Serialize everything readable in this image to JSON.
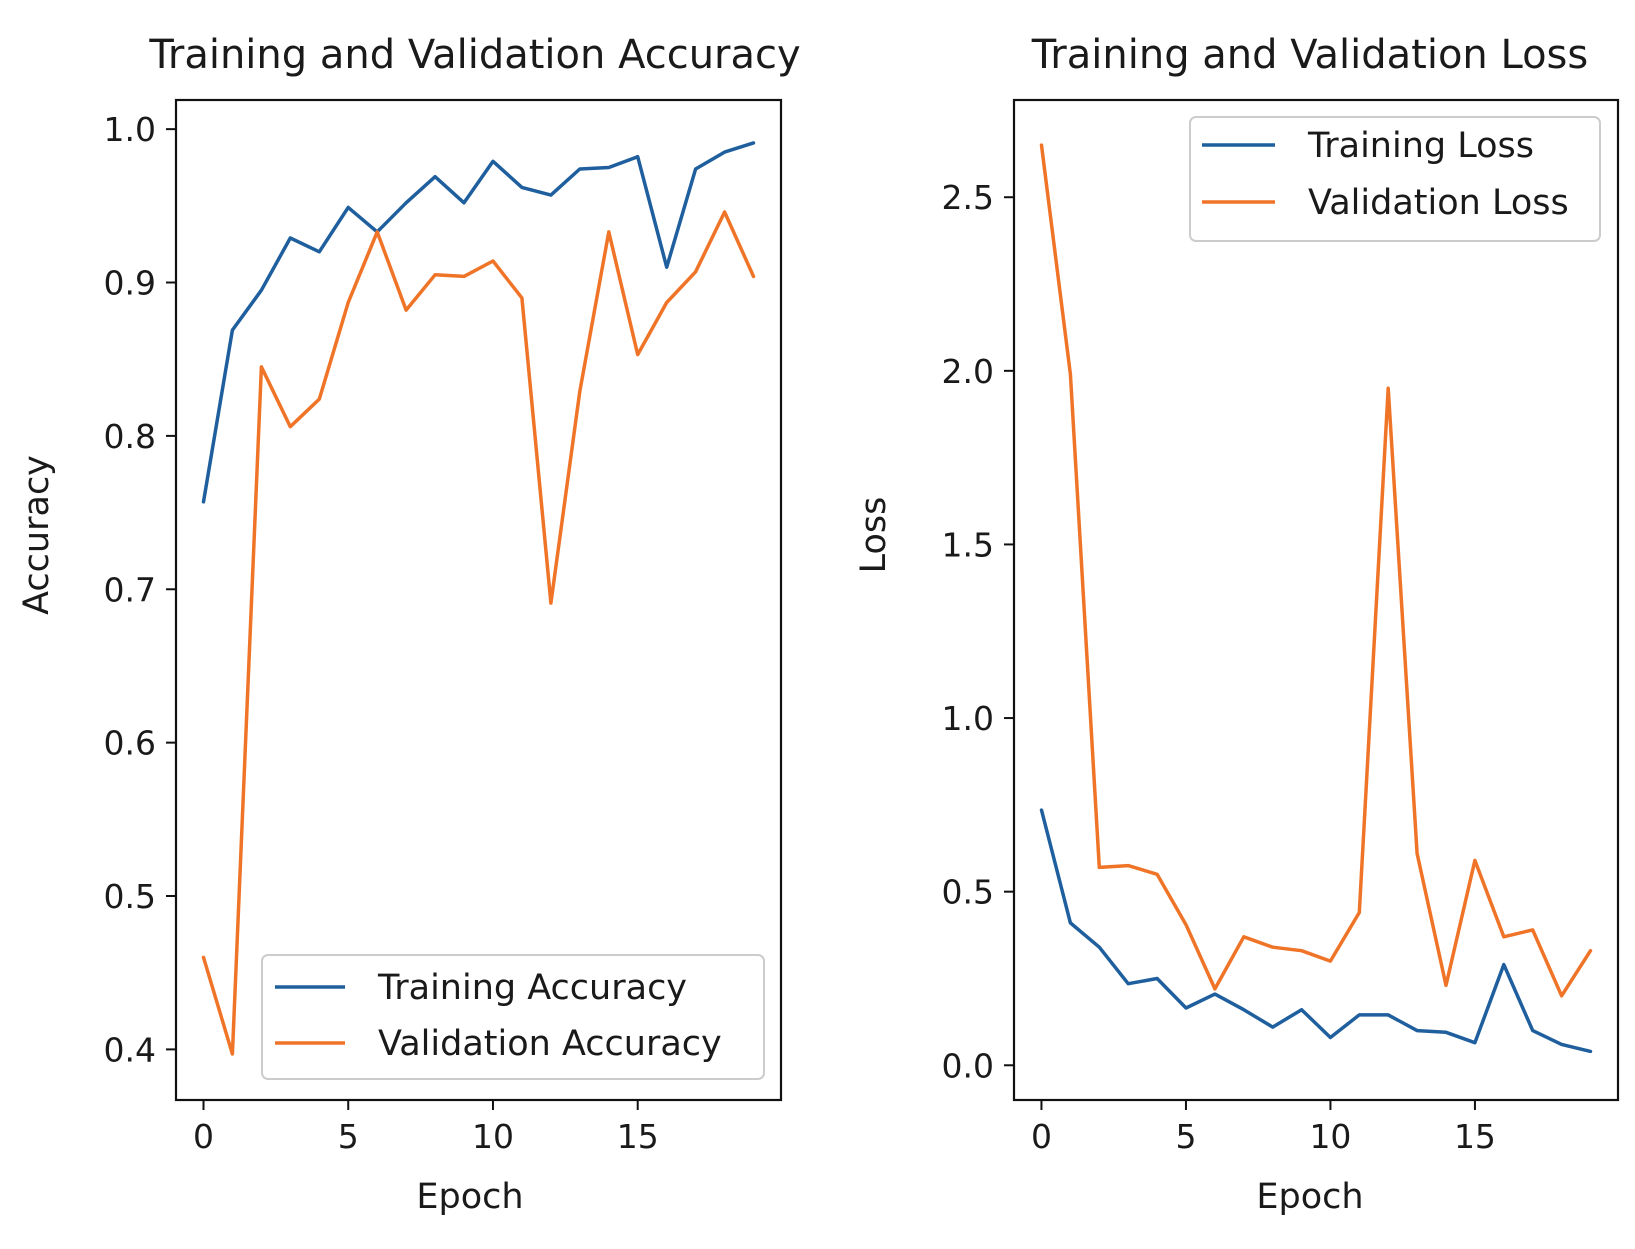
{
  "chart_data": [
    {
      "type": "line",
      "title": "Training and Validation Accuracy",
      "xlabel": "Epoch",
      "ylabel": "Accuracy",
      "xlim": [
        -0.95,
        19.95
      ],
      "ylim": [
        0.367,
        1.019
      ],
      "xticks": [
        0,
        5,
        10,
        15
      ],
      "yticks": [
        0.4,
        0.5,
        0.6,
        0.7,
        0.8,
        0.9,
        1.0
      ],
      "legend_position": "bottom-right",
      "x": [
        0,
        1,
        2,
        3,
        4,
        5,
        6,
        7,
        8,
        9,
        10,
        11,
        12,
        13,
        14,
        15,
        16,
        17,
        18,
        19
      ],
      "series": [
        {
          "name": "Training Accuracy",
          "color": "#1f5f9e",
          "values": [
            0.757,
            0.869,
            0.895,
            0.929,
            0.92,
            0.949,
            0.933,
            0.952,
            0.969,
            0.952,
            0.979,
            0.962,
            0.957,
            0.974,
            0.975,
            0.982,
            0.91,
            0.974,
            0.985,
            0.991
          ]
        },
        {
          "name": "Validation Accuracy",
          "color": "#f07428",
          "values": [
            0.46,
            0.397,
            0.845,
            0.806,
            0.824,
            0.887,
            0.933,
            0.882,
            0.905,
            0.904,
            0.914,
            0.89,
            0.691,
            0.829,
            0.933,
            0.853,
            0.887,
            0.907,
            0.946,
            0.904
          ]
        }
      ]
    },
    {
      "type": "line",
      "title": "Training and Validation Loss",
      "xlabel": "Epoch",
      "ylabel": "Loss",
      "xlim": [
        -0.95,
        19.95
      ],
      "ylim": [
        -0.1,
        2.78
      ],
      "xticks": [
        0,
        5,
        10,
        15
      ],
      "yticks": [
        0.0,
        0.5,
        1.0,
        1.5,
        2.0,
        2.5
      ],
      "legend_position": "upper-right",
      "x": [
        0,
        1,
        2,
        3,
        4,
        5,
        6,
        7,
        8,
        9,
        10,
        11,
        12,
        13,
        14,
        15,
        16,
        17,
        18,
        19
      ],
      "series": [
        {
          "name": "Training Loss",
          "color": "#1f5f9e",
          "values": [
            0.735,
            0.41,
            0.34,
            0.235,
            0.25,
            0.165,
            0.205,
            0.16,
            0.11,
            0.16,
            0.08,
            0.145,
            0.145,
            0.1,
            0.095,
            0.065,
            0.29,
            0.1,
            0.06,
            0.04
          ]
        },
        {
          "name": "Validation Loss",
          "color": "#f07428",
          "values": [
            2.65,
            1.99,
            0.57,
            0.575,
            0.55,
            0.405,
            0.22,
            0.37,
            0.34,
            0.33,
            0.3,
            0.44,
            1.95,
            0.61,
            0.23,
            0.59,
            0.37,
            0.39,
            0.2,
            0.33
          ]
        }
      ]
    }
  ]
}
